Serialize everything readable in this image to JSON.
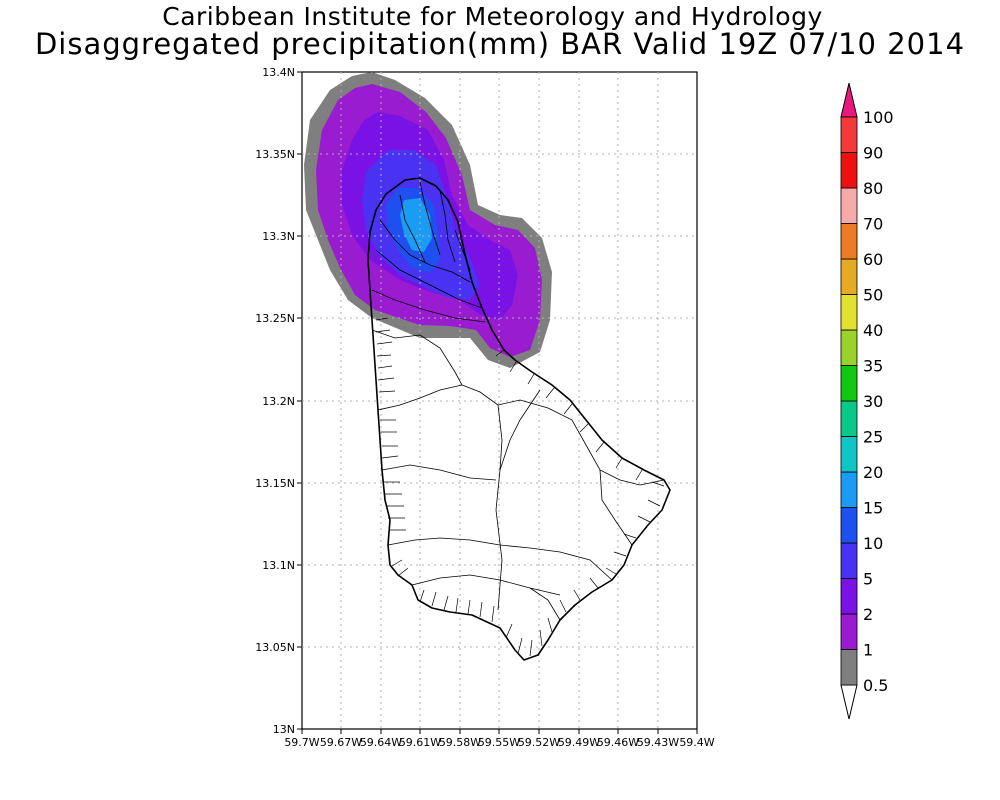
{
  "header": {
    "line1": "Caribbean Institute for Meteorology and Hydrology",
    "line2": "Disaggregated precipitation(mm) BAR Valid 19Z 07/10 2014"
  },
  "map": {
    "region": "Barbados",
    "variable": "precipitation",
    "units": "mm",
    "lat_range": [
      13.0,
      13.4
    ],
    "lon_range": [
      -59.7,
      -59.4
    ],
    "lat_ticks": [
      "13N",
      "13.05N",
      "13.1N",
      "13.15N",
      "13.2N",
      "13.25N",
      "13.3N",
      "13.35N",
      "13.4N"
    ],
    "lon_ticks": [
      "59.7W",
      "59.67W",
      "59.64W",
      "59.61W",
      "59.58W",
      "59.55W",
      "59.52W",
      "59.49W",
      "59.46W",
      "59.43W",
      "59.4W"
    ],
    "grid": true
  },
  "colorbar": {
    "placement": "right",
    "levels": [
      {
        "label": "0.5",
        "color": "#ffffff"
      },
      {
        "label": "1",
        "color": "#7f7f7f"
      },
      {
        "label": "2",
        "color": "#9a1cd0"
      },
      {
        "label": "5",
        "color": "#7a12e6"
      },
      {
        "label": "10",
        "color": "#4a32f2"
      },
      {
        "label": "15",
        "color": "#1e50f0"
      },
      {
        "label": "20",
        "color": "#1a9cf5"
      },
      {
        "label": "25",
        "color": "#10c4c8"
      },
      {
        "label": "30",
        "color": "#0ac88a"
      },
      {
        "label": "35",
        "color": "#12c812"
      },
      {
        "label": "40",
        "color": "#9ad22a"
      },
      {
        "label": "50",
        "color": "#e2e030"
      },
      {
        "label": "60",
        "color": "#e4aa24"
      },
      {
        "label": "70",
        "color": "#ee7a24"
      },
      {
        "label": "80",
        "color": "#f8aaaa"
      },
      {
        "label": "90",
        "color": "#ee1010"
      },
      {
        "label": "100",
        "color": "#f23a3a"
      }
    ],
    "extend_high_color": "#e8187e",
    "extend_low_color": "#ffffff"
  }
}
